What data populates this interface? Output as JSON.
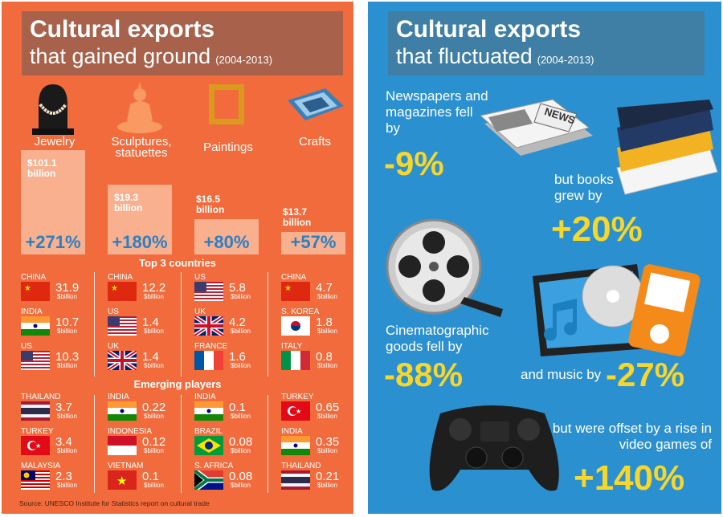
{
  "left": {
    "title_line1": "Cultural exports",
    "title_line2": "that gained ground",
    "title_years": "(2004-2013)",
    "categories": [
      {
        "label": "Jewelry",
        "icon": "jewelry-necklace-icon",
        "value": "$101.1",
        "unit": "billion",
        "pct": "+271%"
      },
      {
        "label": "Sculptures, statuettes",
        "icon": "buddha-statue-icon",
        "value": "$19.3",
        "unit": "billion",
        "pct": "+180%"
      },
      {
        "label": "Paintings",
        "icon": "picture-frame-icon",
        "value": "$16.5",
        "unit": "billion",
        "pct": "+80%"
      },
      {
        "label": "Crafts",
        "icon": "carpet-icon",
        "value": "$13.7",
        "unit": "billion",
        "pct": "+57%"
      }
    ],
    "top3_heading": "Top 3 countries",
    "top3": [
      [
        {
          "country": "CHINA",
          "value": "31.9"
        },
        {
          "country": "INDIA",
          "value": "10.7"
        },
        {
          "country": "US",
          "value": "10.3"
        }
      ],
      [
        {
          "country": "CHINA",
          "value": "12.2"
        },
        {
          "country": "US",
          "value": "1.4"
        },
        {
          "country": "UK",
          "value": "1.4"
        }
      ],
      [
        {
          "country": "US",
          "value": "5.8"
        },
        {
          "country": "UK",
          "value": "4.2"
        },
        {
          "country": "FRANCE",
          "value": "1.6"
        }
      ],
      [
        {
          "country": "CHINA",
          "value": "4.7"
        },
        {
          "country": "S. KOREA",
          "value": "1.8"
        },
        {
          "country": "ITALY",
          "value": "0.8"
        }
      ]
    ],
    "emerging_heading": "Emerging players",
    "emerging": [
      [
        {
          "country": "THAILAND",
          "value": "3.7"
        },
        {
          "country": "TURKEY",
          "value": "3.4"
        },
        {
          "country": "MALAYSIA",
          "value": "2.3"
        }
      ],
      [
        {
          "country": "INDIA",
          "value": "0.22"
        },
        {
          "country": "INDONESIA",
          "value": "0.12"
        },
        {
          "country": "VIETNAM",
          "value": "0.1"
        }
      ],
      [
        {
          "country": "INDIA",
          "value": "0.1"
        },
        {
          "country": "BRAZIL",
          "value": "0.08"
        },
        {
          "country": "S. AFRICA",
          "value": "0.08"
        }
      ],
      [
        {
          "country": "TURKEY",
          "value": "0.65"
        },
        {
          "country": "INDIA",
          "value": "0.35"
        },
        {
          "country": "THAILAND",
          "value": "0.21"
        }
      ]
    ],
    "unit_label": "$billion",
    "source": "Source: UNESCO Institute for Statistics report on cultural trade"
  },
  "right": {
    "title_line1": "Cultural exports",
    "title_line2": "that fluctuated",
    "title_years": "(2004-2013)",
    "newspapers_text": "Newspapers and magazines fell by",
    "newspapers_pct": "-9%",
    "newspaper_logo": "NEWS",
    "books_text": "but books grew by",
    "books_pct": "+20%",
    "cinema_text": "Cinematographic goods fell by",
    "cinema_pct": "-88%",
    "music_text": "and music by",
    "music_pct": "-27%",
    "games_text": "but were offset by a rise in video games of",
    "games_pct": "+140%"
  },
  "colors": {
    "left_bg": "#f26b3c",
    "right_bg": "#2b90cf",
    "pct_blue": "#2b7fc3",
    "highlight_yellow": "#f8d62a"
  }
}
